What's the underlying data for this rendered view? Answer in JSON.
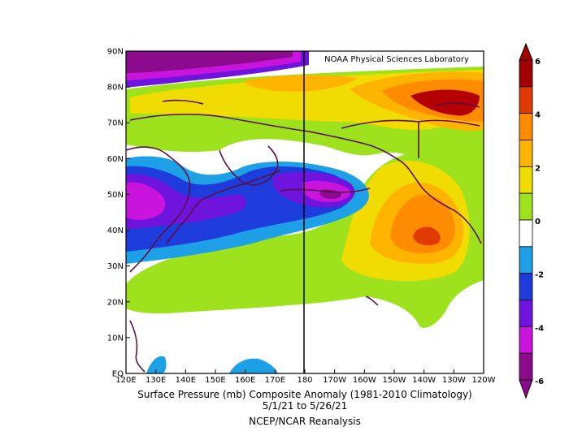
{
  "credit": "NOAA Physical Sciences Laboratory",
  "caption": {
    "line1": "Surface Pressure (mb) Composite Anomaly (1981-2010 Climatology)",
    "line2": "5/1/21  to 5/26/21",
    "line3": "NCEP/NCAR Reanalysis"
  },
  "map": {
    "variable": "Surface Pressure anomaly",
    "units": "mb",
    "lon_range": [
      "120E",
      "120W"
    ],
    "lat_range": [
      "EQ",
      "90N"
    ],
    "lat_labels": [
      "90N",
      "80N",
      "70N",
      "60N",
      "50N",
      "40N",
      "30N",
      "20N",
      "10N",
      "EQ"
    ],
    "lon_labels": [
      "120E",
      "130E",
      "140E",
      "150E",
      "160E",
      "170E",
      "180",
      "170W",
      "160W",
      "150W",
      "140W",
      "130W",
      "120W"
    ],
    "features": [
      "high pressure anomaly over NE Pacific near 40N 140W",
      "low pressure anomaly near 50N 170E-175W",
      "low pressure anomaly near Japan/Kuril 50N 125E",
      "strong negative anomaly near 90N 120E-150E",
      "positive anomaly near 80N 140W"
    ]
  },
  "colorbar": {
    "labels": [
      "6",
      "4",
      "2",
      "0",
      "-2",
      "-4",
      "-6"
    ],
    "colors": [
      "#a00000",
      "#e03a00",
      "#ff8c00",
      "#ffb400",
      "#f0dc00",
      "#9ee21e",
      "#ffffff",
      "#1ea0e6",
      "#1e3cdc",
      "#6e14dc",
      "#c814dc",
      "#8c0a8c"
    ]
  },
  "colors": {
    "coast": "#5a0f4a",
    "meridian": "#000000"
  }
}
